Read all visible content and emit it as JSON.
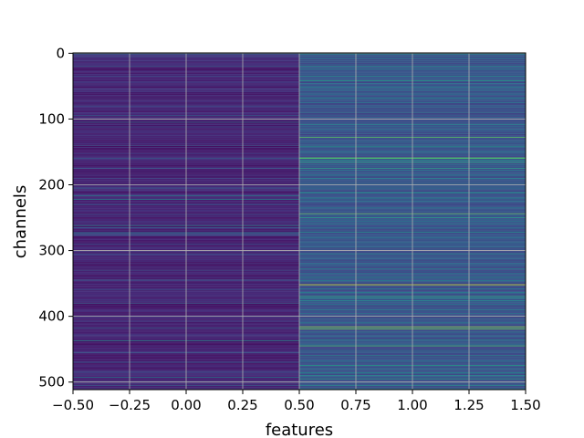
{
  "chart_data": {
    "type": "heatmap",
    "title": "",
    "xlabel": "features",
    "ylabel": "channels",
    "xlim": [
      -0.5,
      1.5
    ],
    "ylim": [
      511.5,
      -0.5
    ],
    "x_ticks": [
      -0.5,
      -0.25,
      0.0,
      0.25,
      0.5,
      0.75,
      1.0,
      1.25,
      1.5
    ],
    "x_tick_labels": [
      "−0.50",
      "−0.25",
      "0.00",
      "0.25",
      "0.50",
      "0.75",
      "1.00",
      "1.25",
      "1.50"
    ],
    "y_ticks": [
      0,
      100,
      200,
      300,
      400,
      500
    ],
    "y_tick_labels": [
      "0",
      "100",
      "200",
      "300",
      "400",
      "500"
    ],
    "grid": true,
    "colormap": "viridis",
    "colormap_stops": [
      "#440154",
      "#472d7b",
      "#3b528b",
      "#2c728e",
      "#21918c",
      "#28ae80",
      "#5ec962",
      "#addc30",
      "#fde725"
    ],
    "n_rows": 512,
    "columns": [
      0,
      1
    ],
    "column_0": {
      "base_level": 0.1,
      "rows": {
        "1": 0.4,
        "5": 0.25,
        "12": 0.2,
        "20": 0.3,
        "35": 0.25,
        "55": 0.2,
        "80": 0.25,
        "95": 0.3,
        "105": 0.35,
        "112": 0.25,
        "140": 0.25,
        "160": 0.3,
        "175": 0.3,
        "190": 0.25,
        "205": 0.3,
        "217": 0.45,
        "222": 0.45,
        "230": 0.3,
        "245": 0.25,
        "262": 0.45,
        "265": 0.3,
        "273": 0.45,
        "276": 0.3,
        "290": 0.25,
        "305": 0.3,
        "330": 0.25,
        "345": 0.3,
        "360": 0.25,
        "380": 0.3,
        "400": 0.25,
        "418": 0.3,
        "437": 0.5,
        "455": 0.3,
        "470": 0.3,
        "485": 0.25,
        "493": 0.4,
        "500": 0.3,
        "505": 0.3
      }
    },
    "column_1": {
      "base_level": 0.25,
      "rows": {
        "1": 0.55,
        "4": 0.4,
        "8": 0.45,
        "12": 0.35,
        "20": 0.5,
        "24": 0.4,
        "35": 0.5,
        "42": 0.55,
        "46": 0.4,
        "52": 0.45,
        "56": 0.4,
        "62": 0.35,
        "68": 0.45,
        "75": 0.4,
        "82": 0.35,
        "90": 0.4,
        "98": 0.35,
        "108": 0.5,
        "115": 0.4,
        "122": 0.35,
        "128": 0.75,
        "134": 0.4,
        "140": 0.35,
        "142": 0.5,
        "150": 0.4,
        "159": 0.7,
        "160": 0.7,
        "163": 0.55,
        "166": 0.6,
        "170": 0.4,
        "175": 0.55,
        "178": 0.45,
        "185": 0.4,
        "190": 0.45,
        "198": 0.4,
        "205": 0.35,
        "212": 0.5,
        "220": 0.45,
        "225": 0.4,
        "235": 0.35,
        "244": 0.75,
        "250": 0.55,
        "255": 0.4,
        "260": 0.45,
        "266": 0.4,
        "272": 0.5,
        "280": 0.4,
        "288": 0.35,
        "295": 0.4,
        "305": 0.5,
        "312": 0.35,
        "320": 0.4,
        "328": 0.45,
        "335": 0.4,
        "341": 0.5,
        "346": 0.45,
        "352": 0.95,
        "358": 0.4,
        "364": 0.45,
        "369": 0.6,
        "372": 0.55,
        "376": 0.5,
        "382": 0.4,
        "390": 0.45,
        "396": 0.4,
        "404": 0.35,
        "410": 0.45,
        "416": 0.85,
        "419": 0.8,
        "424": 0.45,
        "430": 0.4,
        "436": 0.5,
        "442": 0.4,
        "445": 0.7,
        "452": 0.4,
        "460": 0.45,
        "468": 0.4,
        "475": 0.55,
        "480": 0.4,
        "486": 0.5,
        "490": 0.45,
        "495": 0.55,
        "500": 0.45,
        "505": 0.5,
        "510": 0.4
      }
    }
  }
}
